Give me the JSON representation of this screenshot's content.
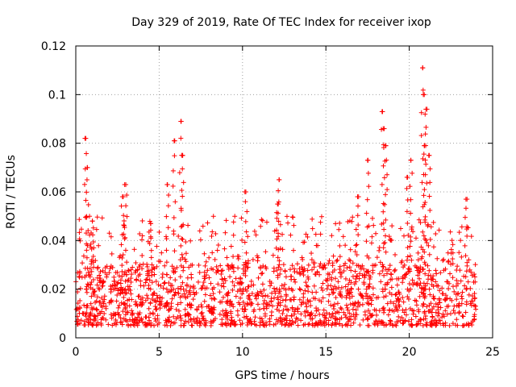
{
  "chart_data": {
    "type": "scatter",
    "title": "Day 329 of 2019, Rate Of TEC Index for receiver ixop",
    "xlabel": "GPS time / hours",
    "ylabel": "ROTI / TECUs",
    "xlim": [
      0,
      25
    ],
    "ylim": [
      0,
      0.12
    ],
    "x_ticks": [
      0,
      5,
      10,
      15,
      20,
      25
    ],
    "y_ticks": [
      0,
      0.02,
      0.04,
      0.06,
      0.08,
      0.1,
      0.12
    ],
    "x_tick_labels": [
      "0",
      "5",
      "10",
      "15",
      "20",
      "25"
    ],
    "y_tick_labels": [
      "0",
      "0.02",
      "0.04",
      "0.06",
      "0.08",
      "0.1",
      "0.12"
    ],
    "grid": true,
    "marker": "+",
    "color": "#ff0000",
    "series": [
      {
        "name": "ROTI",
        "data_range_hours": [
          0,
          24
        ],
        "baseline_range": [
          0.005,
          0.03
        ],
        "bursts": [
          {
            "x": 0.6,
            "y": 0.082
          },
          {
            "x": 0.7,
            "y": 0.07
          },
          {
            "x": 1.0,
            "y": 0.048
          },
          {
            "x": 3.0,
            "y": 0.063
          },
          {
            "x": 2.8,
            "y": 0.058
          },
          {
            "x": 4.5,
            "y": 0.047
          },
          {
            "x": 5.5,
            "y": 0.063
          },
          {
            "x": 5.9,
            "y": 0.081
          },
          {
            "x": 6.3,
            "y": 0.089
          },
          {
            "x": 6.4,
            "y": 0.075
          },
          {
            "x": 10.2,
            "y": 0.06
          },
          {
            "x": 12.2,
            "y": 0.065
          },
          {
            "x": 12.1,
            "y": 0.055
          },
          {
            "x": 16.9,
            "y": 0.058
          },
          {
            "x": 17.5,
            "y": 0.073
          },
          {
            "x": 18.4,
            "y": 0.093
          },
          {
            "x": 18.5,
            "y": 0.086
          },
          {
            "x": 18.6,
            "y": 0.079
          },
          {
            "x": 19.9,
            "y": 0.066
          },
          {
            "x": 20.1,
            "y": 0.073
          },
          {
            "x": 20.8,
            "y": 0.111
          },
          {
            "x": 20.9,
            "y": 0.1
          },
          {
            "x": 21.0,
            "y": 0.094
          },
          {
            "x": 20.9,
            "y": 0.079
          },
          {
            "x": 21.2,
            "y": 0.075
          },
          {
            "x": 23.4,
            "y": 0.057
          }
        ]
      }
    ]
  }
}
